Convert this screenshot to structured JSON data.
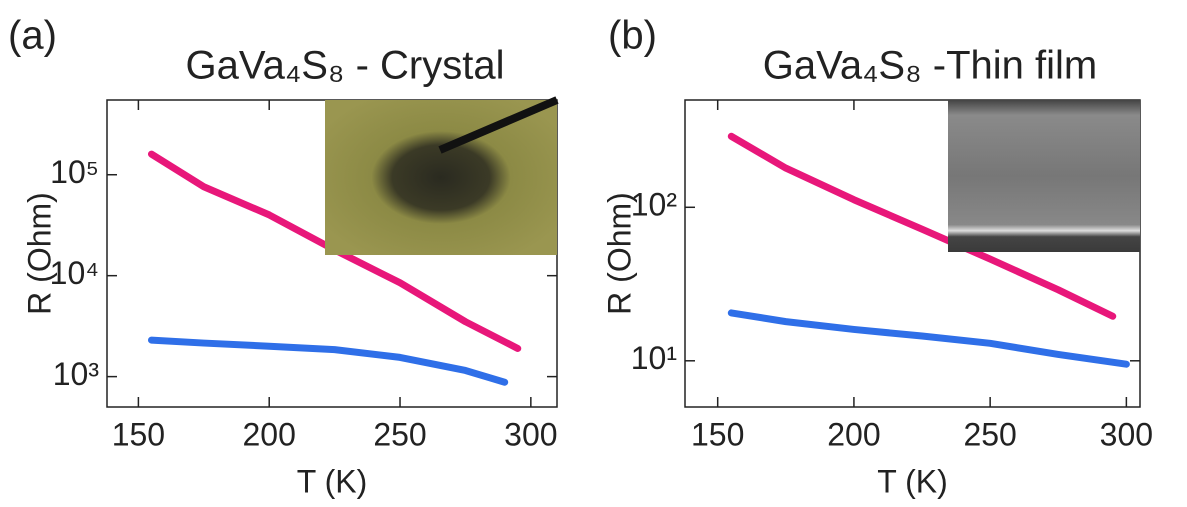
{
  "chart_data": [
    {
      "type": "line",
      "panel_label": "(a)",
      "title": "GaVa₄S₈ - Crystal",
      "x_label": "T (K)",
      "y_label": "R (Ohm)",
      "log_y": true,
      "xlim": [
        138,
        310
      ],
      "ylim": [
        500,
        550000
      ],
      "xticks": [
        150,
        200,
        250,
        300
      ],
      "yticks": [
        {
          "value": 1000,
          "label": "10³"
        },
        {
          "value": 10000,
          "label": "10⁴"
        },
        {
          "value": 100000,
          "label": "10⁵"
        }
      ],
      "series": [
        {
          "color": "#e8177a",
          "x": [
            155,
            175,
            200,
            225,
            250,
            275,
            295
          ],
          "values": [
            160000,
            76000,
            40000,
            18000,
            8500,
            3500,
            1900
          ]
        },
        {
          "color": "#2f6fe8",
          "x": [
            155,
            175,
            200,
            225,
            250,
            275,
            290
          ],
          "values": [
            2300,
            2150,
            2000,
            1850,
            1550,
            1150,
            880
          ]
        }
      ]
    },
    {
      "type": "line",
      "panel_label": "(b)",
      "title": "GaVa₄S₈ -Thin film",
      "x_label": "T (K)",
      "y_label": "R (Ohm)",
      "log_y": true,
      "xlim": [
        138,
        305
      ],
      "ylim": [
        5,
        500
      ],
      "xticks": [
        150,
        200,
        250,
        300
      ],
      "yticks": [
        {
          "value": 10,
          "label": "10¹"
        },
        {
          "value": 100,
          "label": "10²"
        }
      ],
      "series": [
        {
          "color": "#e8177a",
          "x": [
            155,
            175,
            200,
            225,
            250,
            275,
            295
          ],
          "values": [
            290,
            180,
            112,
            72,
            46,
            29,
            19.5
          ]
        },
        {
          "color": "#2f6fe8",
          "x": [
            155,
            175,
            200,
            225,
            250,
            275,
            300
          ],
          "values": [
            20.5,
            18,
            16,
            14.5,
            13,
            11,
            9.5
          ]
        }
      ]
    }
  ]
}
